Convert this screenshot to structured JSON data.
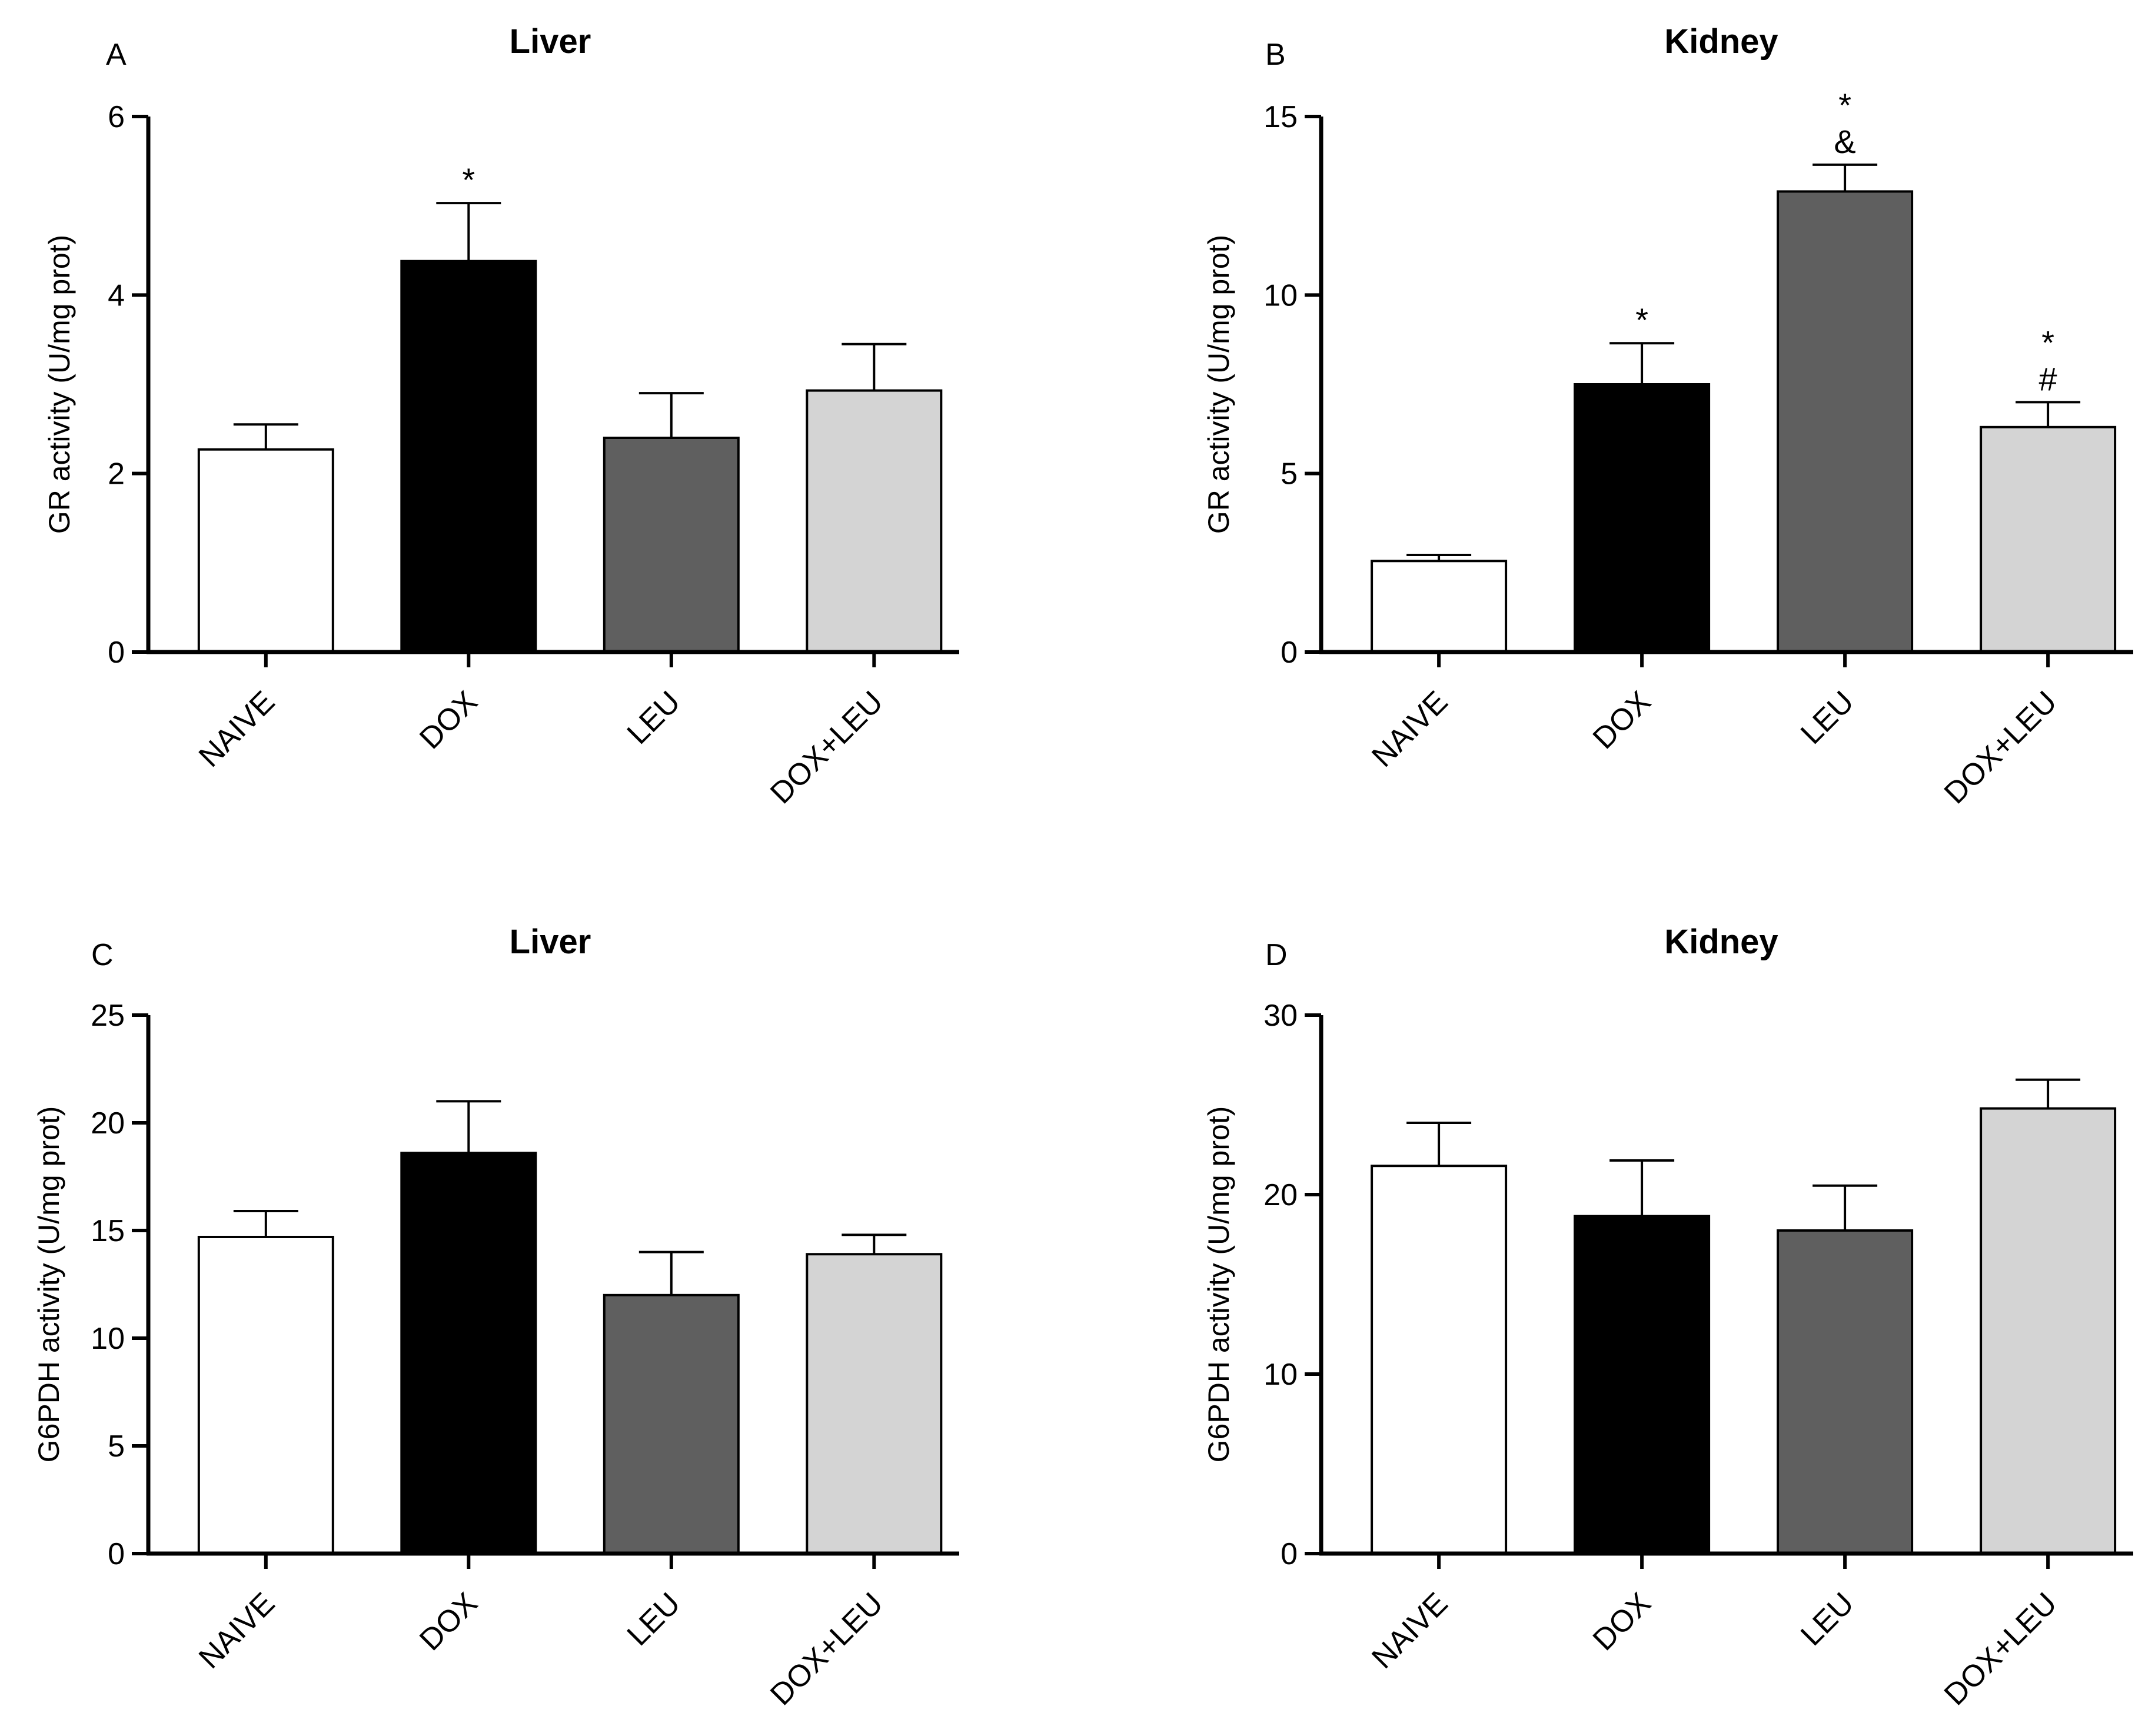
{
  "chart_data": [
    {
      "type": "bar",
      "panel": "A",
      "title": "Liver",
      "xlabel": "",
      "ylabel": "GR activity (U/mg prot)",
      "ylim": [
        0,
        6
      ],
      "yticks": [
        0,
        2,
        4,
        6
      ],
      "categories": [
        "NAIVE",
        "DOX",
        "LEU",
        "DOX+LEU"
      ],
      "values": [
        2.27,
        4.38,
        2.4,
        2.93
      ],
      "errors": [
        0.28,
        0.65,
        0.5,
        0.52
      ],
      "bar_colors": [
        "#ffffff",
        "#000000",
        "#5f5f5f",
        "#d4d4d4"
      ],
      "annotations": [
        [],
        [
          "*"
        ],
        [],
        []
      ]
    },
    {
      "type": "bar",
      "panel": "B",
      "title": "Kidney",
      "xlabel": "",
      "ylabel": "GR activity (U/mg prot)",
      "ylim": [
        0,
        15
      ],
      "yticks": [
        0,
        5,
        10,
        15
      ],
      "categories": [
        "NAIVE",
        "DOX",
        "LEU",
        "DOX+LEU"
      ],
      "values": [
        2.55,
        7.5,
        12.9,
        6.3
      ],
      "errors": [
        0.17,
        1.15,
        0.75,
        0.7
      ],
      "bar_colors": [
        "#ffffff",
        "#000000",
        "#5f5f5f",
        "#d4d4d4"
      ],
      "annotations": [
        [],
        [
          "*"
        ],
        [
          "&",
          "*"
        ],
        [
          "#",
          "*"
        ]
      ]
    },
    {
      "type": "bar",
      "panel": "C",
      "title": "Liver",
      "xlabel": "",
      "ylabel": "G6PDH activity (U/mg prot)",
      "ylim": [
        0,
        25
      ],
      "yticks": [
        0,
        5,
        10,
        15,
        20,
        25
      ],
      "categories": [
        "NAIVE",
        "DOX",
        "LEU",
        "DOX+LEU"
      ],
      "values": [
        14.7,
        18.6,
        12.0,
        13.9
      ],
      "errors": [
        1.2,
        2.4,
        2.0,
        0.9
      ],
      "bar_colors": [
        "#ffffff",
        "#000000",
        "#5f5f5f",
        "#d4d4d4"
      ],
      "annotations": [
        [],
        [],
        [],
        []
      ]
    },
    {
      "type": "bar",
      "panel": "D",
      "title": "Kidney",
      "xlabel": "",
      "ylabel": "G6PDH activity (U/mg prot)",
      "ylim": [
        0,
        30
      ],
      "yticks": [
        0,
        10,
        20,
        30
      ],
      "categories": [
        "NAIVE",
        "DOX",
        "LEU",
        "DOX+LEU"
      ],
      "values": [
        21.6,
        18.8,
        18.0,
        24.8
      ],
      "errors": [
        2.4,
        3.1,
        2.5,
        1.6
      ],
      "bar_colors": [
        "#ffffff",
        "#000000",
        "#5f5f5f",
        "#d4d4d4"
      ],
      "annotations": [
        [],
        [],
        [],
        []
      ]
    }
  ]
}
